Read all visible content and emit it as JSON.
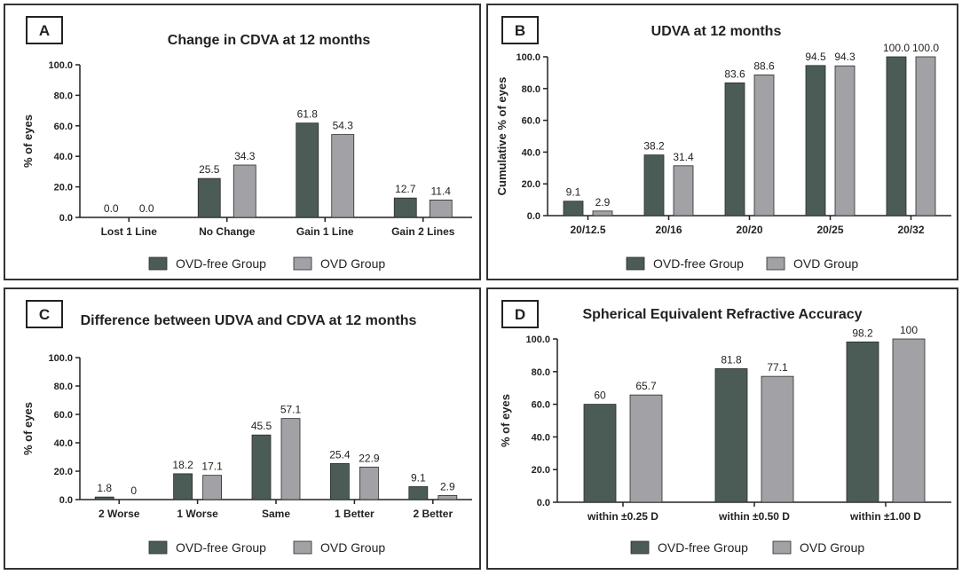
{
  "colors": {
    "ovd_free": "#4b5c56",
    "ovd": "#a2a2a6",
    "axis": "#222222",
    "text": "#222222"
  },
  "chart_data": [
    {
      "panel": "A",
      "type": "bar",
      "title": "Change in CDVA at 12 months",
      "ylabel": "% of eyes",
      "xlabel": "",
      "ylim": [
        0,
        100
      ],
      "yticks": [
        "0.0",
        "20.0",
        "40.0",
        "60.0",
        "80.0",
        "100.0"
      ],
      "categories": [
        "Lost 1 Line",
        "No Change",
        "Gain 1 Line",
        "Gain 2 Lines"
      ],
      "series": [
        {
          "name": "OVD-free Group",
          "values": [
            0,
            25.5,
            61.8,
            12.7
          ],
          "labels": [
            "0.0",
            "25.5",
            "61.8",
            "12.7"
          ]
        },
        {
          "name": "OVD Group",
          "values": [
            0,
            34.3,
            54.3,
            11.4
          ],
          "labels": [
            "0.0",
            "34.3",
            "54.3",
            "11.4"
          ]
        }
      ],
      "legend": "bottom-center"
    },
    {
      "panel": "B",
      "type": "bar",
      "title": "UDVA at 12 months",
      "ylabel": "Cumulative % of eyes",
      "xlabel": "",
      "ylim": [
        0,
        100
      ],
      "yticks": [
        "0.0",
        "20.0",
        "40.0",
        "60.0",
        "80.0",
        "100.0"
      ],
      "categories": [
        "20/12.5",
        "20/16",
        "20/20",
        "20/25",
        "20/32"
      ],
      "series": [
        {
          "name": "OVD-free Group",
          "values": [
            9.1,
            38.2,
            83.6,
            94.5,
            100.0
          ],
          "labels": [
            "9.1",
            "38.2",
            "83.6",
            "94.5",
            "100.0"
          ]
        },
        {
          "name": "OVD Group",
          "values": [
            2.9,
            31.4,
            88.6,
            94.3,
            100.0
          ],
          "labels": [
            "2.9",
            "31.4",
            "88.6",
            "94.3",
            "100.0"
          ]
        }
      ],
      "legend": "bottom-center"
    },
    {
      "panel": "C",
      "type": "bar",
      "title": "Difference between UDVA and CDVA at 12 months",
      "ylabel": "% of eyes",
      "xlabel": "",
      "ylim": [
        0,
        100
      ],
      "yticks": [
        "0.0",
        "20.0",
        "40.0",
        "60.0",
        "80.0",
        "100.0"
      ],
      "categories": [
        "2 Worse",
        "1 Worse",
        "Same",
        "1 Better",
        "2 Better"
      ],
      "series": [
        {
          "name": "OVD-free Group",
          "values": [
            1.8,
            18.2,
            45.5,
            25.4,
            9.1
          ],
          "labels": [
            "1.8",
            "18.2",
            "45.5",
            "25.4",
            "9.1"
          ]
        },
        {
          "name": "OVD Group",
          "values": [
            0,
            17.1,
            57.1,
            22.9,
            2.9
          ],
          "labels": [
            "0",
            "17.1",
            "57.1",
            "22.9",
            "2.9"
          ]
        }
      ],
      "legend": "bottom-center"
    },
    {
      "panel": "D",
      "type": "bar",
      "title": "Spherical Equivalent Refractive Accuracy",
      "ylabel": "% of eyes",
      "xlabel": "",
      "ylim": [
        0,
        100
      ],
      "yticks": [
        "0.0",
        "20.0",
        "40.0",
        "60.0",
        "80.0",
        "100.0"
      ],
      "categories": [
        "within ±0.25 D",
        "within ±0.50 D",
        "within ±1.00 D"
      ],
      "series": [
        {
          "name": "OVD-free Group",
          "values": [
            60,
            81.8,
            98.2
          ],
          "labels": [
            "60",
            "81.8",
            "98.2"
          ]
        },
        {
          "name": "OVD Group",
          "values": [
            65.7,
            77.1,
            100
          ],
          "labels": [
            "65.7",
            "77.1",
            "100"
          ]
        }
      ],
      "legend": "bottom-center"
    }
  ]
}
